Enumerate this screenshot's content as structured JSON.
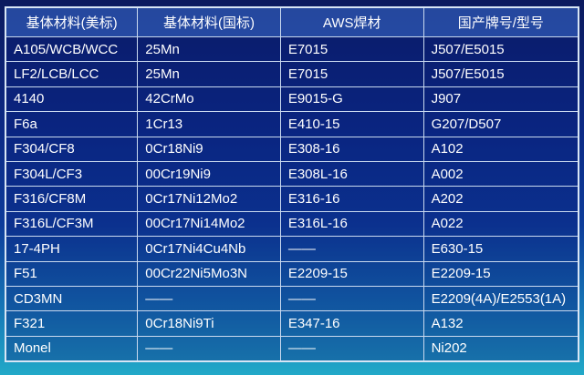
{
  "table": {
    "headers": [
      "基体材料(美标)",
      "基体材料(国标)",
      "AWS焊材",
      "国产牌号/型号"
    ],
    "rows": [
      [
        "A105/WCB/WCC",
        "25Mn",
        "E7015",
        "J507/E5015"
      ],
      [
        "LF2/LCB/LCC",
        "25Mn",
        "E7015",
        "J507/E5015"
      ],
      [
        "4140",
        "42CrMo",
        "E9015-G",
        "J907"
      ],
      [
        "F6a",
        "1Cr13",
        "E410-15",
        "G207/D507"
      ],
      [
        "F304/CF8",
        "0Cr18Ni9",
        "E308-16",
        "A102"
      ],
      [
        "F304L/CF3",
        "00Cr19Ni9",
        "E308L-16",
        "A002"
      ],
      [
        "F316/CF8M",
        "0Cr17Ni12Mo2",
        "E316-16",
        "A202"
      ],
      [
        "F316L/CF3M",
        "00Cr17Ni14Mo2",
        "E316L-16",
        "A022"
      ],
      [
        "17-4PH",
        "0Cr17Ni4Cu4Nb",
        "——",
        "E630-15"
      ],
      [
        "F51",
        "00Cr22Ni5Mo3N",
        "E2209-15",
        "E2209-15"
      ],
      [
        "CD3MN",
        "——",
        "——",
        "E2209(4A)/E2553(1A)"
      ],
      [
        "F321",
        "0Cr18Ni9Ti",
        "E347-16",
        "A132"
      ],
      [
        "Monel",
        "——",
        "——",
        "Ni202"
      ]
    ]
  },
  "colors": {
    "background_top": "#0b1a5e",
    "background_bottom": "#22a9c8",
    "border": "#c9d9ef",
    "text": "#ffffff"
  }
}
